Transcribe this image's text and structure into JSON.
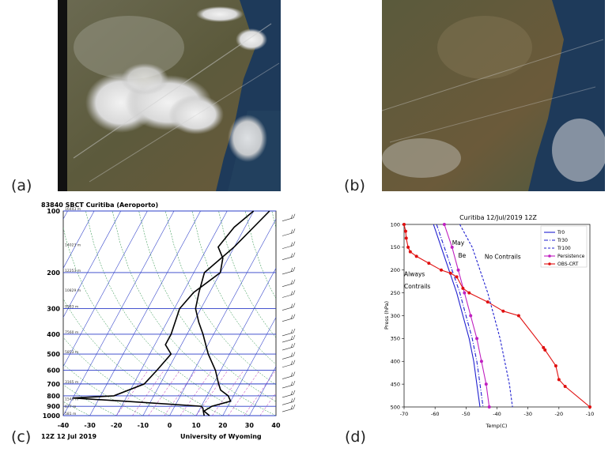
{
  "panel_labels": {
    "a": "(a)",
    "b": "(b)",
    "c": "(c)",
    "d": "(d)"
  },
  "skewt": {
    "title": "83840 SBCT Curitiba (Aeroporto)",
    "footer_left": "12Z 12 Jul 2019",
    "footer_right": "University of Wyoming",
    "pressure_ticks": [
      "100",
      "200",
      "300",
      "400",
      "500",
      "600",
      "700",
      "800",
      "900",
      "1000"
    ],
    "temp_ticks": [
      "-40",
      "-30",
      "-20",
      "-10",
      "0",
      "10",
      "20",
      "30",
      "40"
    ],
    "height_labels": [
      "16443 m",
      "14023 m",
      "12253 m",
      "10829 m",
      "9583 m",
      "7560 m",
      "5853 m",
      "3165 m",
      "1549 m",
      "677 m",
      "581 m"
    ]
  },
  "chart_data": {
    "type": "line",
    "title": "Curitiba 12/Jul/2019 12Z",
    "xlabel": "Temp(C)",
    "ylabel": "Press (hPa)",
    "xlim": [
      -70,
      -10
    ],
    "ylim": [
      500,
      100
    ],
    "y_inverted": true,
    "x_ticks": [
      -70,
      -60,
      -50,
      -40,
      -30,
      -20,
      -10
    ],
    "y_ticks": [
      100,
      150,
      200,
      250,
      300,
      350,
      400,
      450,
      500
    ],
    "legend_position": "top-right",
    "annotations": [
      "May",
      "Be",
      "No Contrails",
      "Always",
      "Contrails"
    ],
    "series": [
      {
        "name": "Tr0",
        "color": "#1f1fd0",
        "dash": "solid",
        "points": [
          [
            -60.5,
            100
          ],
          [
            -58,
            150
          ],
          [
            -55.5,
            200
          ],
          [
            -53,
            250
          ],
          [
            -51,
            300
          ],
          [
            -49,
            350
          ],
          [
            -47.5,
            400
          ],
          [
            -46.5,
            450
          ],
          [
            -45.5,
            500
          ]
        ]
      },
      {
        "name": "Tr30",
        "color": "#1f1fd0",
        "dash": "dashdot",
        "points": [
          [
            -59.5,
            100
          ],
          [
            -57,
            150
          ],
          [
            -54.5,
            200
          ],
          [
            -52,
            250
          ],
          [
            -50,
            300
          ],
          [
            -48,
            350
          ],
          [
            -46.5,
            400
          ],
          [
            -45.5,
            450
          ],
          [
            -44.5,
            500
          ]
        ]
      },
      {
        "name": "Tr100",
        "color": "#1f1fd0",
        "dash": "dashed",
        "points": [
          [
            -52,
            100
          ],
          [
            -48,
            150
          ],
          [
            -45.5,
            200
          ],
          [
            -43,
            250
          ],
          [
            -41,
            300
          ],
          [
            -39,
            350
          ],
          [
            -37.5,
            400
          ],
          [
            -36,
            450
          ],
          [
            -35,
            500
          ]
        ]
      },
      {
        "name": "Persistence",
        "color": "#c020c0",
        "dash": "solid",
        "marker": "dot",
        "points": [
          [
            -57,
            100
          ],
          [
            -54.5,
            150
          ],
          [
            -52.5,
            200
          ],
          [
            -50.5,
            250
          ],
          [
            -48.5,
            300
          ],
          [
            -46.5,
            350
          ],
          [
            -45,
            400
          ],
          [
            -43.5,
            450
          ],
          [
            -42.5,
            500
          ]
        ]
      },
      {
        "name": "OBS-CRT",
        "color": "#e01010",
        "dash": "solid",
        "marker": "dot",
        "points": [
          [
            -70,
            100
          ],
          [
            -69.5,
            115
          ],
          [
            -69.3,
            130
          ],
          [
            -68.7,
            150
          ],
          [
            -68,
            160
          ],
          [
            -66,
            170
          ],
          [
            -62,
            185
          ],
          [
            -58,
            200
          ],
          [
            -55,
            207
          ],
          [
            -53,
            215
          ],
          [
            -51,
            240
          ],
          [
            -49,
            250
          ],
          [
            -43,
            270
          ],
          [
            -38,
            290
          ],
          [
            -33,
            300
          ],
          [
            -25,
            370
          ],
          [
            -24.5,
            375
          ],
          [
            -21,
            410
          ],
          [
            -20,
            440
          ],
          [
            -18,
            455
          ],
          [
            -10,
            500
          ]
        ]
      }
    ]
  }
}
